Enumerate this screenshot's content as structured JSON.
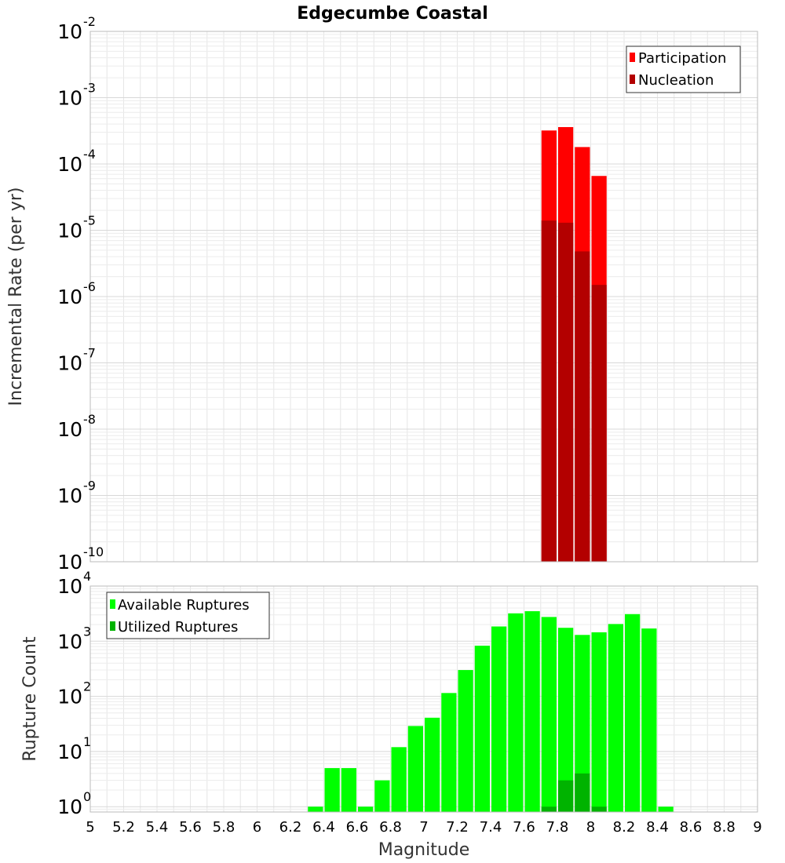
{
  "title": "Edgecumbe Coastal",
  "colors": {
    "participation": "#ff0000",
    "nucleation": "#b30000",
    "available": "#00ff00",
    "utilized": "#00b300",
    "grid": "#e6e6e6",
    "frame": "#bbbbbb"
  },
  "chart_data": [
    {
      "type": "bar",
      "name": "rate-panel",
      "ylabel": "Incremental Rate (per yr)",
      "xlabel": "",
      "yscale": "log",
      "ylim": [
        1e-10,
        0.01
      ],
      "xlim": [
        5,
        9
      ],
      "y_ticks": [
        {
          "base": "10",
          "exp": "-10"
        },
        {
          "base": "10",
          "exp": "-9"
        },
        {
          "base": "10",
          "exp": "-8"
        },
        {
          "base": "10",
          "exp": "-7"
        },
        {
          "base": "10",
          "exp": "-6"
        },
        {
          "base": "10",
          "exp": "-5"
        },
        {
          "base": "10",
          "exp": "-4"
        },
        {
          "base": "10",
          "exp": "-3"
        },
        {
          "base": "10",
          "exp": "-2"
        }
      ],
      "legend": {
        "position": "top-right",
        "entries": [
          "Participation",
          "Nucleation"
        ]
      },
      "grid": true,
      "x": [
        7.75,
        7.85,
        7.95,
        8.05
      ],
      "series": [
        {
          "name": "Participation",
          "values": [
            0.00032,
            0.00036,
            0.00018,
            6.6e-05
          ]
        },
        {
          "name": "Nucleation",
          "values": [
            1.4e-05,
            1.3e-05,
            4.8e-06,
            1.5e-06
          ]
        }
      ]
    },
    {
      "type": "bar",
      "name": "count-panel",
      "ylabel": "Rupture Count",
      "xlabel": "Magnitude",
      "yscale": "log",
      "ylim": [
        0.8,
        10000
      ],
      "xlim": [
        5,
        9
      ],
      "y_ticks": [
        {
          "base": "10",
          "exp": "0"
        },
        {
          "base": "10",
          "exp": "1"
        },
        {
          "base": "10",
          "exp": "2"
        },
        {
          "base": "10",
          "exp": "3"
        },
        {
          "base": "10",
          "exp": "4"
        }
      ],
      "x_ticks": [
        "5",
        "5.2",
        "5.4",
        "5.6",
        "5.8",
        "6",
        "6.2",
        "6.4",
        "6.6",
        "6.8",
        "7",
        "7.2",
        "7.4",
        "7.6",
        "7.8",
        "8",
        "8.2",
        "8.4",
        "8.6",
        "8.8",
        "9"
      ],
      "legend": {
        "position": "top-left",
        "entries": [
          "Available Ruptures",
          "Utilized Ruptures"
        ]
      },
      "grid": true,
      "x": [
        6.35,
        6.45,
        6.55,
        6.65,
        6.75,
        6.85,
        6.95,
        7.05,
        7.15,
        7.25,
        7.35,
        7.45,
        7.55,
        7.65,
        7.75,
        7.85,
        7.95,
        8.05,
        8.15,
        8.25,
        8.35,
        8.45
      ],
      "series": [
        {
          "name": "Available Ruptures",
          "values": [
            1,
            5,
            5,
            1,
            3,
            12,
            29,
            41,
            115,
            300,
            830,
            1850,
            3200,
            3500,
            2750,
            1750,
            1300,
            1450,
            2050,
            3100,
            1700,
            1
          ]
        },
        {
          "name": "Utilized Ruptures",
          "values": [
            0,
            0,
            0,
            0,
            0,
            0,
            0,
            0,
            0,
            0,
            0,
            0,
            0,
            0,
            1,
            3,
            4,
            1,
            0,
            0,
            0,
            0
          ]
        }
      ]
    }
  ]
}
